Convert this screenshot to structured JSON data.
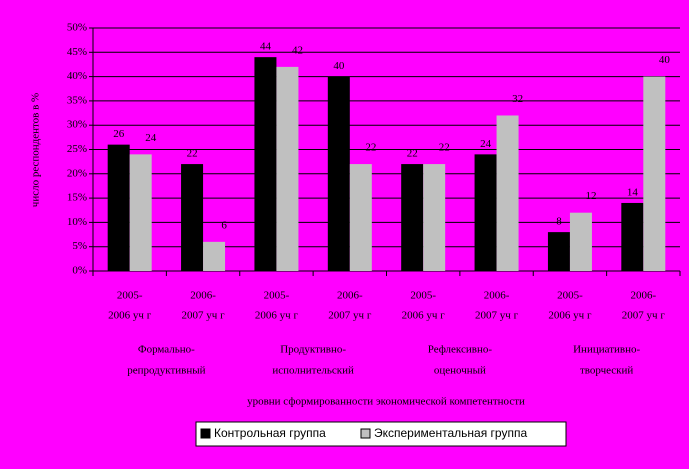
{
  "chart_data": {
    "type": "bar",
    "y_label": "число респондентов в %",
    "x_label": "уровни сформированности экономической компетентности",
    "categories": [
      [
        "2005-",
        "2006 уч г"
      ],
      [
        "2006-",
        "2007 уч г"
      ],
      [
        "2005-",
        "2006 уч г"
      ],
      [
        "2006-",
        "2007 уч г"
      ],
      [
        "2005-",
        "2006 уч г"
      ],
      [
        "2006-",
        "2007 уч г"
      ],
      [
        "2005-",
        "2006 уч г"
      ],
      [
        "2006-",
        "2007 уч г"
      ]
    ],
    "groups": [
      [
        "Формально-",
        "репродуктивный"
      ],
      [
        "Продуктивно-",
        "исполнительский"
      ],
      [
        "Рефлексивно-",
        "оценочный"
      ],
      [
        "Инициативно-",
        "творческий"
      ]
    ],
    "series": [
      {
        "name": "Контрольная группа",
        "color": "#000000",
        "values": [
          26,
          22,
          44,
          40,
          22,
          24,
          8,
          14
        ]
      },
      {
        "name": "Экспериментальная группа",
        "color": "#c0c0c0",
        "values": [
          24,
          6,
          42,
          22,
          22,
          32,
          12,
          40
        ]
      }
    ],
    "ylim": [
      0,
      50
    ],
    "yticks": [
      {
        "value": 0,
        "label": "0%"
      },
      {
        "value": 5,
        "label": "5%"
      },
      {
        "value": 10,
        "label": "10%"
      },
      {
        "value": 15,
        "label": "15%"
      },
      {
        "value": 20,
        "label": "20%"
      },
      {
        "value": 25,
        "label": "25%"
      },
      {
        "value": 30,
        "label": "30%"
      },
      {
        "value": 35,
        "label": "35%"
      },
      {
        "value": 40,
        "label": "40%"
      },
      {
        "value": 45,
        "label": "45%"
      },
      {
        "value": 50,
        "label": "50%"
      }
    ],
    "grid": true,
    "background": "#ff00ff"
  }
}
